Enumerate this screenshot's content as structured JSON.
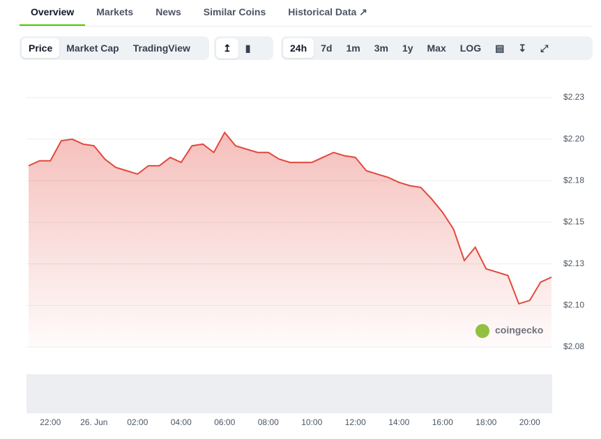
{
  "tabs": [
    "Overview",
    "Markets",
    "News",
    "Similar Coins",
    "Historical Data"
  ],
  "chart_types": [
    "Price",
    "Market Cap",
    "TradingView"
  ],
  "ranges": [
    "24h",
    "7d",
    "1m",
    "3m",
    "1y",
    "Max",
    "LOG"
  ],
  "watermark": "coingecko",
  "chart_data": {
    "type": "area",
    "color": "#e2483d",
    "x": [
      "21:00",
      "21:30",
      "22:00",
      "22:30",
      "23:00",
      "23:30",
      "00:00",
      "00:30",
      "01:00",
      "01:30",
      "02:00",
      "02:30",
      "03:00",
      "03:30",
      "04:00",
      "04:30",
      "05:00",
      "05:30",
      "06:00",
      "06:30",
      "07:00",
      "07:30",
      "08:00",
      "08:30",
      "09:00",
      "09:30",
      "10:00",
      "10:30",
      "11:00",
      "11:30",
      "12:00",
      "12:30",
      "13:00",
      "13:30",
      "14:00",
      "14:30",
      "15:00",
      "15:30",
      "16:00",
      "16:30",
      "17:00",
      "17:30",
      "18:00",
      "18:30",
      "19:00",
      "19:30",
      "20:00",
      "20:30",
      "21:00"
    ],
    "values": [
      2.184,
      2.187,
      2.187,
      2.199,
      2.2,
      2.197,
      2.196,
      2.188,
      2.183,
      2.181,
      2.179,
      2.184,
      2.184,
      2.189,
      2.186,
      2.196,
      2.197,
      2.192,
      2.204,
      2.196,
      2.194,
      2.192,
      2.192,
      2.188,
      2.186,
      2.186,
      2.186,
      2.189,
      2.192,
      2.19,
      2.189,
      2.181,
      2.179,
      2.177,
      2.174,
      2.172,
      2.171,
      2.164,
      2.156,
      2.146,
      2.127,
      2.135,
      2.122,
      2.12,
      2.118,
      2.101,
      2.103,
      2.114,
      2.117
    ],
    "ylim": [
      2.075,
      2.225
    ],
    "yticks": [
      {
        "value": 2.075,
        "label": "$2.08"
      },
      {
        "value": 2.1,
        "label": "$2.10"
      },
      {
        "value": 2.125,
        "label": "$2.13"
      },
      {
        "value": 2.15,
        "label": "$2.15"
      },
      {
        "value": 2.175,
        "label": "$2.18"
      },
      {
        "value": 2.2,
        "label": "$2.20"
      },
      {
        "value": 2.225,
        "label": "$2.23"
      }
    ],
    "xticks": [
      "22:00",
      {
        "value": "00:00",
        "label": "26. Jun"
      },
      "02:00",
      "04:00",
      "06:00",
      "08:00",
      "10:00",
      "12:00",
      "14:00",
      "16:00",
      "18:00",
      "20:00"
    ],
    "grid": true
  }
}
